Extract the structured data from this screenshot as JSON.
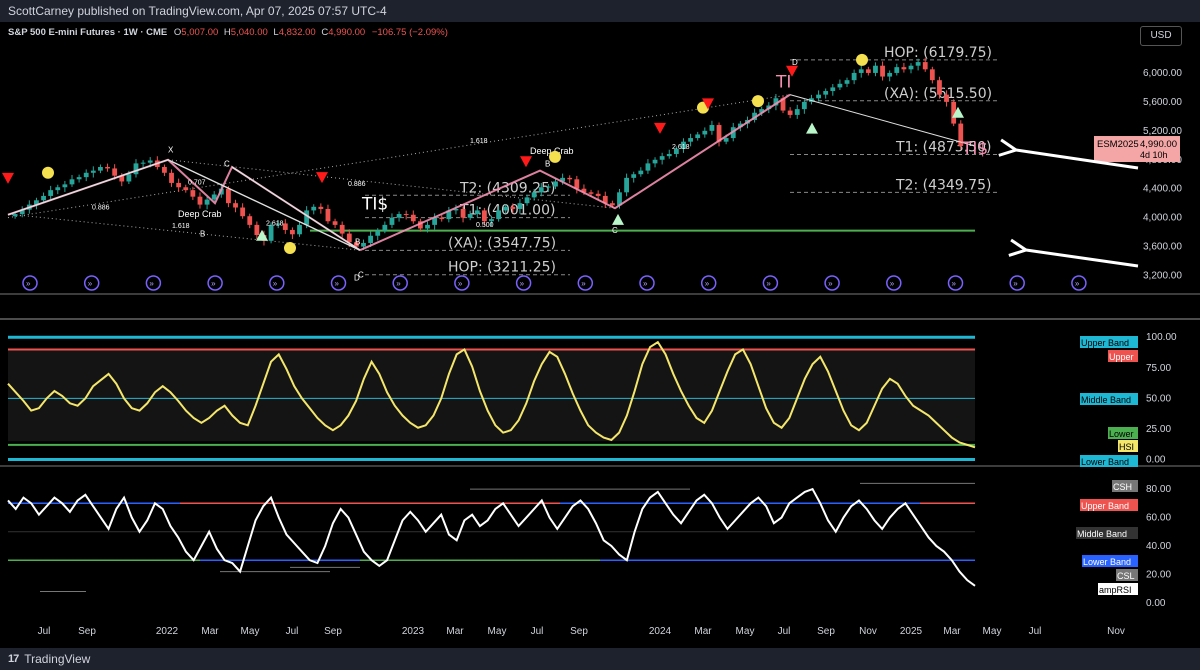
{
  "header": {
    "publisher": "ScottCarney published on TradingView.com, Apr 07, 2025 07:57 UTC-4"
  },
  "legend": {
    "symbol": "S&P 500 E-mini Futures · 1W · CME",
    "open_k": "O",
    "open": "5,007.00",
    "high_k": "H",
    "high": "5,040.00",
    "low_k": "L",
    "low": "4,832.00",
    "close_k": "C",
    "close": "4,990.00",
    "change": "−106.75 (−2.09%)"
  },
  "currency": "USD",
  "footer": {
    "brand": "TradingView"
  },
  "colors": {
    "up": "#26a69a",
    "down": "#ef5350",
    "hsi": "#f4e66a",
    "cyan": "#1fb8d4",
    "green_line": "#4caf50",
    "pattern": "#f48fb1"
  },
  "chart_data": [
    {
      "type": "candlestick",
      "title": "S&P 500 E-mini Futures · 1W · CME",
      "ylim": [
        3000,
        6400
      ],
      "y_ticks": [
        "6,000.00",
        "5,600.00",
        "5,200.00",
        "4,800.00",
        "4,400.00",
        "4,000.00",
        "3,600.00",
        "3,200.00"
      ],
      "x_ticks": [
        "Jul",
        "Sep",
        "2022",
        "Mar",
        "May",
        "Jul",
        "Sep",
        "2023",
        "Mar",
        "May",
        "Jul",
        "Sep",
        "2024",
        "Mar",
        "May",
        "Jul",
        "Sep",
        "Nov",
        "2025",
        "Mar",
        "May",
        "Jul",
        "Nov"
      ],
      "last_price_label": "ESM2025",
      "last_price": "4,990.00",
      "countdown": "4d 10h",
      "levels": [
        {
          "label": "HOP: (6179.75)",
          "value": 6179.75
        },
        {
          "label": "(XA): (5615.50)",
          "value": 5615.5
        },
        {
          "label": "T1: (4873.50)",
          "value": 4873.5
        },
        {
          "label": "T2: (4349.75)",
          "value": 4349.75
        },
        {
          "label": "T2: (4309.25)",
          "value": 4309.25
        },
        {
          "label": "T1: (4001.00)",
          "value": 4001.0
        },
        {
          "label": "(XA): (3547.75)",
          "value": 3547.75
        },
        {
          "label": "HOP: (3211.25)",
          "value": 3211.25
        }
      ],
      "pattern_labels": [
        "X",
        "C",
        "D",
        "B",
        "C",
        "B",
        "D",
        "B",
        "C"
      ],
      "pattern_names": [
        "Deep Crab",
        "Deep Crab"
      ],
      "ratios": [
        "1.618",
        "0.707",
        "0.886",
        "0.886",
        "1.618",
        "2.618",
        "0.500",
        "2.618",
        "2.0"
      ],
      "tis_marks": [
        "TI$",
        "TI$",
        "TI"
      ],
      "green_level": 3820,
      "closes": [
        4050,
        4110,
        4180,
        4240,
        4300,
        4380,
        4420,
        4460,
        4530,
        4560,
        4620,
        4650,
        4700,
        4680,
        4580,
        4500,
        4600,
        4750,
        4760,
        4790,
        4700,
        4620,
        4480,
        4420,
        4380,
        4290,
        4180,
        4250,
        4320,
        4400,
        4200,
        4140,
        4020,
        3900,
        3760,
        3680,
        3900,
        3920,
        3830,
        3770,
        3900,
        4100,
        4150,
        4120,
        3950,
        3900,
        3780,
        3660,
        3600,
        3650,
        3750,
        3820,
        3900,
        4000,
        4050,
        4040,
        3950,
        3850,
        3900,
        4000,
        3980,
        4100,
        4120,
        4000,
        4050,
        4100,
        3950,
        3980,
        4100,
        4150,
        4120,
        4200,
        4280,
        4350,
        4420,
        4430,
        4500,
        4550,
        4530,
        4400,
        4350,
        4330,
        4300,
        4200,
        4170,
        4350,
        4550,
        4600,
        4650,
        4750,
        4800,
        4850,
        4880,
        4950,
        5050,
        5100,
        5150,
        5200,
        5280,
        5050,
        5100,
        5250,
        5300,
        5350,
        5450,
        5500,
        5550,
        5650,
        5480,
        5420,
        5500,
        5600,
        5650,
        5700,
        5750,
        5800,
        5850,
        5900,
        6000,
        6050,
        6000,
        6100,
        5950,
        6000,
        6080,
        6050,
        6100,
        6150,
        6050,
        5900,
        5700,
        5600,
        5300,
        4990
      ]
    },
    {
      "type": "line",
      "series": [
        {
          "name": "HSI",
          "values": [
            62,
            55,
            48,
            40,
            42,
            50,
            56,
            52,
            46,
            44,
            50,
            60,
            65,
            70,
            62,
            50,
            42,
            40,
            46,
            55,
            60,
            55,
            48,
            40,
            34,
            30,
            34,
            40,
            44,
            36,
            30,
            28,
            44,
            62,
            80,
            86,
            74,
            60,
            50,
            42,
            34,
            28,
            24,
            28,
            36,
            48,
            66,
            80,
            70,
            55,
            44,
            36,
            30,
            26,
            28,
            36,
            50,
            70,
            86,
            90,
            76,
            56,
            40,
            28,
            22,
            24,
            32,
            46,
            64,
            78,
            88,
            84,
            70,
            54,
            40,
            28,
            22,
            18,
            16,
            22,
            36,
            56,
            78,
            92,
            96,
            86,
            70,
            56,
            44,
            34,
            30,
            40,
            56,
            72,
            86,
            90,
            78,
            60,
            42,
            30,
            26,
            34,
            50,
            66,
            78,
            84,
            72,
            56,
            40,
            28,
            24,
            30,
            44,
            58,
            66,
            62,
            52,
            44,
            40,
            36,
            30,
            24,
            18,
            14,
            12,
            10
          ]
        }
      ],
      "ylim": [
        -2,
        110
      ],
      "y_ticks": [
        "100.00",
        "75.00",
        "50.00",
        "25.00",
        "0.00"
      ],
      "band_labels": [
        "Upper Band",
        "Upper",
        "Middle Band",
        "Lower",
        "HSI",
        "Lower Band"
      ]
    },
    {
      "type": "line",
      "series": [
        {
          "name": "ampRSI",
          "values": [
            72,
            66,
            74,
            70,
            62,
            68,
            74,
            70,
            64,
            72,
            76,
            68,
            60,
            52,
            66,
            74,
            60,
            50,
            58,
            70,
            66,
            54,
            46,
            36,
            30,
            40,
            50,
            38,
            30,
            28,
            22,
            40,
            58,
            68,
            74,
            60,
            48,
            42,
            36,
            30,
            28,
            40,
            56,
            66,
            60,
            48,
            36,
            30,
            26,
            30,
            44,
            58,
            64,
            58,
            50,
            56,
            62,
            48,
            44,
            58,
            62,
            54,
            58,
            66,
            70,
            62,
            54,
            60,
            66,
            72,
            60,
            52,
            60,
            68,
            72,
            66,
            56,
            44,
            40,
            34,
            30,
            50,
            66,
            74,
            78,
            70,
            62,
            56,
            64,
            72,
            76,
            70,
            60,
            52,
            58,
            64,
            70,
            74,
            68,
            56,
            60,
            70,
            74,
            78,
            80,
            70,
            58,
            50,
            60,
            68,
            72,
            66,
            58,
            52,
            60,
            66,
            70,
            62,
            54,
            46,
            40,
            36,
            30,
            22,
            16,
            12
          ]
        }
      ],
      "ylim": [
        -5,
        92
      ],
      "y_ticks": [
        "80.00",
        "60.00",
        "40.00",
        "20.00",
        "0.00"
      ],
      "band_labels": [
        "CSH",
        "Upper Band",
        "Middle Band",
        "Lower Band",
        "CSL",
        "ampRSI"
      ]
    }
  ]
}
